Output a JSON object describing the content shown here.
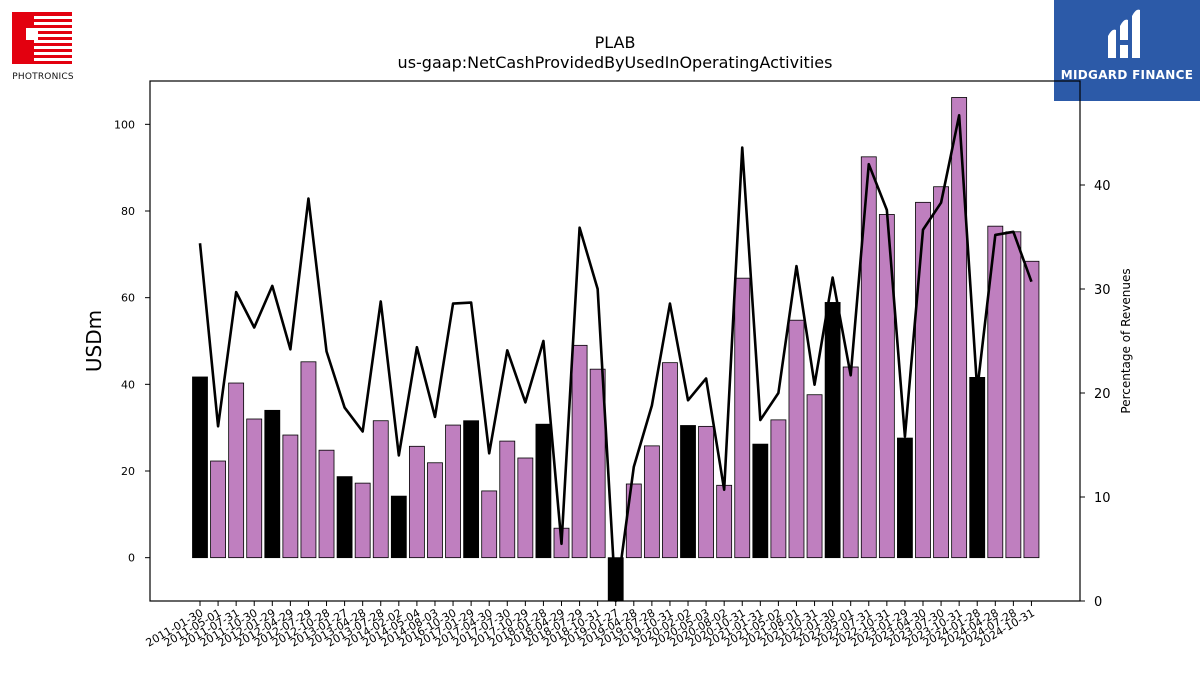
{
  "logos": {
    "left": {
      "name": "Photronics",
      "text": "PHOTRONICS",
      "color": "#e3000f"
    },
    "right": {
      "name": "Midgard Finance",
      "text": "MIDGARD FINANCE",
      "color": "#2c5aa8"
    }
  },
  "chart_data": {
    "type": "bar",
    "title": "PLAB",
    "subtitle": "us-gaap:NetCashProvidedByUsedInOperatingActivities",
    "ylabel": "USDm",
    "ylabel_right": "Percentage of Revenues",
    "ylim": [
      -10,
      110
    ],
    "ylim_right": [
      0,
      50
    ],
    "yticks": [
      0,
      20,
      40,
      60,
      80,
      100
    ],
    "yticks_right": [
      0,
      10,
      20,
      30,
      40
    ],
    "grid": false,
    "colors": {
      "quarterly": "#bf7fbf",
      "annual": "#000000",
      "line": "#000000"
    },
    "categories": [
      "2011-01-30",
      "2011-05-01",
      "2011-07-31",
      "2011-10-30",
      "2012-01-29",
      "2012-04-29",
      "2012-07-29",
      "2012-10-28",
      "2013-01-27",
      "2013-04-28",
      "2013-07-28",
      "2014-02-02",
      "2014-05-04",
      "2014-08-03",
      "2016-10-30",
      "2017-01-29",
      "2017-04-30",
      "2017-07-30",
      "2017-10-29",
      "2018-01-28",
      "2018-04-29",
      "2018-07-29",
      "2018-10-31",
      "2019-01-27",
      "2019-04-28",
      "2019-07-28",
      "2019-10-31",
      "2020-02-02",
      "2020-05-03",
      "2020-08-02",
      "2020-10-31",
      "2021-01-31",
      "2021-05-02",
      "2021-08-01",
      "2021-10-31",
      "2022-01-30",
      "2022-05-01",
      "2022-07-31",
      "2022-10-31",
      "2023-01-29",
      "2023-04-30",
      "2023-07-30",
      "2023-10-31",
      "2024-01-28",
      "2024-04-28",
      "2024-07-28",
      "2024-10-31"
    ],
    "series": [
      {
        "values": [
          41.7,
          22.3,
          40.3,
          32.0,
          34.0,
          28.3,
          45.2,
          24.8,
          18.7,
          17.2,
          31.6,
          14.2,
          25.7,
          21.9,
          30.6,
          31.6,
          15.4,
          26.9,
          23.0,
          30.8,
          6.8,
          49.0,
          43.5,
          -10.0,
          17.0,
          25.8,
          45.0,
          30.5,
          30.3,
          16.7,
          64.5,
          26.2,
          31.8,
          54.8,
          37.6,
          58.9,
          44.0,
          92.5,
          79.2,
          27.6,
          82.0,
          85.6,
          106.2,
          41.6,
          76.5,
          75.2,
          68.4
        ],
        "annual": [
          true,
          false,
          false,
          false,
          true,
          false,
          false,
          false,
          true,
          false,
          false,
          true,
          false,
          false,
          false,
          true,
          false,
          false,
          false,
          true,
          false,
          false,
          false,
          true,
          false,
          false,
          false,
          true,
          false,
          false,
          false,
          true,
          false,
          false,
          false,
          true,
          false,
          false,
          false,
          true,
          false,
          false,
          false,
          true,
          false,
          false,
          false
        ]
      },
      {
        "axis": "right",
        "values": [
          34.4,
          16.8,
          29.7,
          26.3,
          30.3,
          24.2,
          38.7,
          24.0,
          18.6,
          16.3,
          28.8,
          14.0,
          24.4,
          17.7,
          28.6,
          28.7,
          14.2,
          24.1,
          19.1,
          25.0,
          5.5,
          35.9,
          30.0,
          0.0,
          12.9,
          18.8,
          28.6,
          19.3,
          21.4,
          10.7,
          43.6,
          17.4,
          20.0,
          32.2,
          20.8,
          31.1,
          21.7,
          42.0,
          37.6,
          15.8,
          35.7,
          38.3,
          46.7,
          20.3,
          35.2,
          35.5,
          30.7
        ]
      }
    ]
  }
}
